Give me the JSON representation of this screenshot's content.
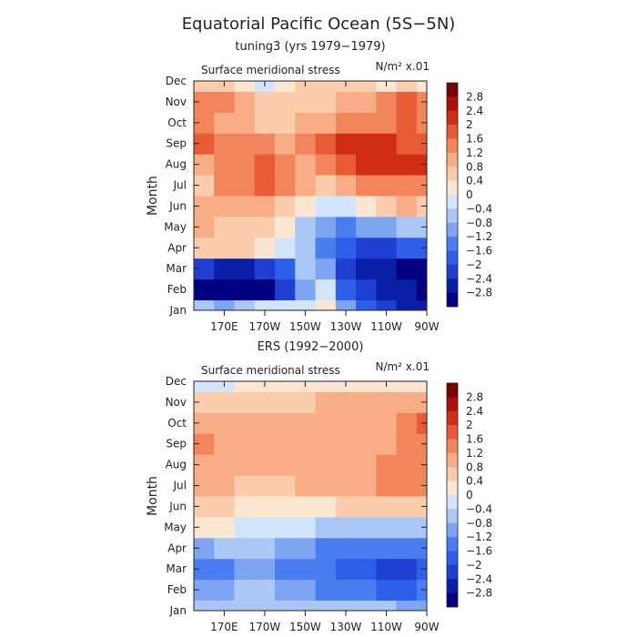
{
  "figure": {
    "title": "Equatorial Pacific Ocean (5S−5N)"
  },
  "chart_data": [
    {
      "type": "heatmap",
      "subtitle": "tuning3 (yrs 1979−1979)",
      "title": "Surface meridional stress",
      "units": "N/m² x.01",
      "ylabel": "Month",
      "xlabel": "",
      "x_ticks": [
        {
          "label": "170E",
          "lon": 170
        },
        {
          "label": "170W",
          "lon": 190
        },
        {
          "label": "150W",
          "lon": 210
        },
        {
          "label": "130W",
          "lon": 230
        },
        {
          "label": "110W",
          "lon": 250
        },
        {
          "label": "90W",
          "lon": 270
        }
      ],
      "xlim": [
        155,
        270
      ],
      "months": [
        "Jan",
        "Feb",
        "Mar",
        "Apr",
        "May",
        "Jun",
        "Jul",
        "Aug",
        "Sep",
        "Oct",
        "Nov",
        "Dec"
      ],
      "columns_lon": [
        160,
        170,
        180,
        190,
        200,
        210,
        220,
        230,
        240,
        250,
        260,
        270
      ],
      "values": [
        [
          -0.8,
          -1.0,
          -0.6,
          -0.2,
          -0.4,
          -0.4,
          0.2,
          -1.2,
          -2.0,
          -2.2,
          -2.6,
          -2.8
        ],
        [
          -2.9,
          -2.9,
          -2.9,
          -2.9,
          -2.2,
          -1.2,
          -0.4,
          -1.8,
          -2.4,
          -2.6,
          -2.8,
          -2.9
        ],
        [
          -2.4,
          -2.6,
          -2.6,
          -2.2,
          -1.8,
          -0.8,
          -1.2,
          -2.2,
          -2.6,
          -2.8,
          -3.0,
          -3.0
        ],
        [
          0.6,
          0.4,
          0.4,
          0.2,
          -0.4,
          -0.8,
          -1.4,
          -2.0,
          -2.4,
          -2.2,
          -2.0,
          -1.8
        ],
        [
          0.8,
          0.6,
          0.6,
          0.4,
          0.0,
          -0.6,
          -1.0,
          -1.4,
          -1.2,
          -1.0,
          -0.8,
          -0.6
        ],
        [
          1.0,
          0.8,
          0.8,
          0.8,
          0.6,
          0.2,
          -0.2,
          -0.4,
          0.2,
          0.6,
          0.8,
          0.6
        ],
        [
          0.6,
          1.2,
          1.4,
          1.8,
          1.2,
          0.8,
          0.6,
          0.8,
          1.2,
          1.4,
          1.4,
          1.2
        ],
        [
          1.0,
          1.2,
          1.4,
          1.6,
          1.2,
          1.0,
          1.2,
          1.6,
          2.0,
          2.0,
          2.0,
          2.2
        ],
        [
          1.8,
          1.4,
          1.2,
          1.2,
          1.0,
          1.2,
          1.6,
          2.0,
          2.2,
          2.0,
          1.8,
          1.6
        ],
        [
          1.2,
          1.0,
          0.8,
          0.6,
          0.6,
          0.8,
          1.0,
          1.2,
          1.4,
          1.4,
          1.6,
          1.4
        ],
        [
          1.4,
          1.2,
          0.8,
          0.4,
          0.6,
          0.6,
          0.6,
          0.8,
          1.0,
          1.2,
          1.6,
          1.2
        ],
        [
          0.6,
          0.4,
          0.0,
          -0.4,
          0.2,
          0.4,
          0.4,
          0.6,
          0.4,
          0.2,
          0.4,
          0.2
        ]
      ]
    },
    {
      "type": "heatmap",
      "subtitle": "ERS (1992−2000)",
      "title": "Surface meridional stress",
      "units": "N/m² x.01",
      "ylabel": "Month",
      "xlabel": "",
      "x_ticks": [
        {
          "label": "170E",
          "lon": 170
        },
        {
          "label": "170W",
          "lon": 190
        },
        {
          "label": "150W",
          "lon": 210
        },
        {
          "label": "130W",
          "lon": 230
        },
        {
          "label": "110W",
          "lon": 250
        },
        {
          "label": "90W",
          "lon": 270
        }
      ],
      "xlim": [
        155,
        270
      ],
      "months": [
        "Jan",
        "Feb",
        "Mar",
        "Apr",
        "May",
        "Jun",
        "Jul",
        "Aug",
        "Sep",
        "Oct",
        "Nov",
        "Dec"
      ],
      "columns_lon": [
        160,
        170,
        180,
        190,
        200,
        210,
        220,
        230,
        240,
        250,
        260,
        270
      ],
      "values": [
        [
          -0.6,
          -0.8,
          -0.6,
          -0.6,
          -0.6,
          -0.6,
          -0.8,
          -0.8,
          -0.8,
          -0.8,
          -1.0,
          -1.0
        ],
        [
          -1.2,
          -1.0,
          -0.8,
          -0.8,
          -1.0,
          -1.2,
          -1.4,
          -1.6,
          -1.6,
          -1.8,
          -1.8,
          -1.6
        ],
        [
          -1.6,
          -1.4,
          -1.2,
          -1.2,
          -1.4,
          -1.6,
          -1.6,
          -1.8,
          -2.0,
          -2.2,
          -2.2,
          -2.0
        ],
        [
          -1.0,
          -0.8,
          -0.8,
          -0.8,
          -1.0,
          -1.2,
          -1.4,
          -1.6,
          -1.6,
          -1.6,
          -1.6,
          -1.4
        ],
        [
          0.2,
          0.0,
          -0.2,
          -0.4,
          -0.4,
          -0.4,
          -0.6,
          -0.6,
          -0.6,
          -0.6,
          -0.8,
          -0.6
        ],
        [
          0.4,
          0.4,
          0.2,
          0.2,
          0.2,
          0.2,
          0.2,
          0.4,
          0.4,
          0.4,
          0.4,
          0.4
        ],
        [
          0.8,
          0.8,
          0.6,
          0.6,
          0.6,
          0.8,
          0.8,
          0.8,
          1.0,
          1.2,
          1.2,
          1.2
        ],
        [
          0.8,
          0.8,
          0.8,
          0.8,
          0.8,
          0.8,
          0.8,
          1.0,
          1.0,
          1.2,
          1.4,
          1.4
        ],
        [
          1.4,
          1.0,
          0.8,
          0.8,
          0.8,
          1.0,
          1.0,
          1.0,
          1.0,
          1.0,
          1.2,
          1.4
        ],
        [
          1.0,
          0.8,
          0.8,
          0.8,
          0.8,
          0.8,
          1.0,
          1.0,
          1.0,
          1.0,
          1.2,
          1.6
        ],
        [
          0.6,
          0.6,
          0.6,
          0.6,
          0.6,
          0.6,
          0.8,
          0.8,
          0.8,
          0.8,
          0.8,
          0.8
        ],
        [
          -0.2,
          -0.2,
          0.0,
          0.0,
          0.0,
          0.0,
          0.2,
          0.2,
          0.2,
          0.2,
          0.2,
          0.2
        ]
      ]
    }
  ],
  "colorbar": {
    "labels": [
      "2.8",
      "2.4",
      "2",
      "1.6",
      "1.2",
      "0.8",
      "0.4",
      "0",
      "−0.4",
      "−0.8",
      "−1.2",
      "−1.6",
      "−2",
      "−2.4",
      "−2.8"
    ],
    "levels": [
      -2.8,
      -2.4,
      -2.0,
      -1.6,
      -1.2,
      -0.8,
      -0.4,
      0,
      0.4,
      0.8,
      1.2,
      1.6,
      2.0,
      2.4,
      2.8
    ],
    "colors": [
      "#000080",
      "#0a1fa8",
      "#1e3fd1",
      "#2d5fe8",
      "#4a7ef0",
      "#7ea5f2",
      "#aac7f6",
      "#d2e5fb",
      "#fbe6d2",
      "#fccdad",
      "#f9ad86",
      "#f3855c",
      "#e95b34",
      "#cf2d14",
      "#ac1108",
      "#7a0000"
    ]
  }
}
